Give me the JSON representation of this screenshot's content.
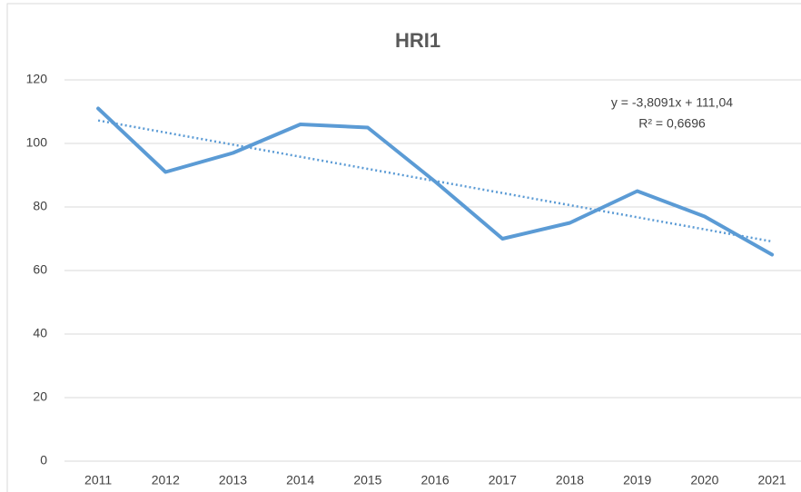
{
  "chart_data": {
    "type": "line",
    "title": "HRI1",
    "categories": [
      "2011",
      "2012",
      "2013",
      "2014",
      "2015",
      "2016",
      "2017",
      "2018",
      "2019",
      "2020",
      "2021"
    ],
    "series": [
      {
        "name": "HRI1",
        "color": "#5b9bd5",
        "values": [
          111,
          91,
          97,
          106,
          105,
          88,
          70,
          75,
          85,
          77,
          65
        ]
      }
    ],
    "trendline": {
      "slope": -3.8091,
      "intercept": 111.04,
      "label": "y = -3,8091x + 111,04",
      "r2": 0.6696,
      "r2_label": "R² = 0,6696"
    },
    "ylim": [
      0,
      120
    ],
    "yticks": [
      0,
      20,
      40,
      60,
      80,
      100,
      120
    ],
    "grid": true
  }
}
